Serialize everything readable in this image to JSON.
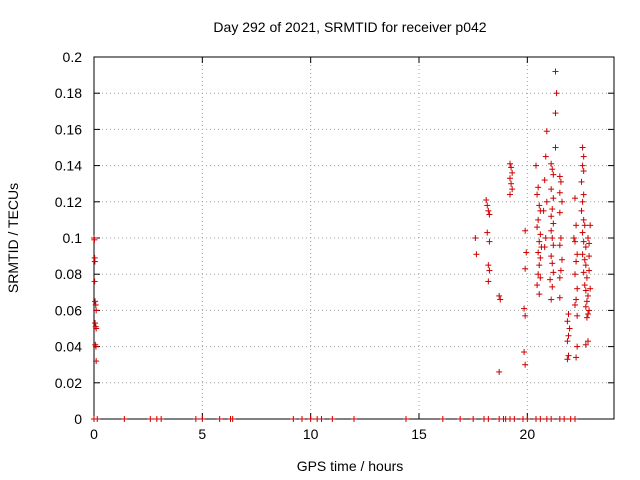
{
  "chart_data": {
    "type": "scatter",
    "title": "Day 292 of 2021, SRMTID for receiver p042",
    "xlabel": "GPS time / hours",
    "ylabel": "SRMTID / TECUs",
    "xlim": [
      0,
      24
    ],
    "ylim": [
      0,
      0.2
    ],
    "x_ticks": [
      0,
      5,
      10,
      15,
      20
    ],
    "x_tick_labels": [
      "0",
      "5",
      "10",
      "15",
      "20"
    ],
    "y_ticks": [
      0,
      0.02,
      0.04,
      0.06,
      0.08,
      0.1,
      0.12,
      0.14,
      0.16,
      0.18,
      0.2
    ],
    "y_tick_labels": [
      "0",
      "0.02",
      "0.04",
      "0.06",
      "0.08",
      "0.1",
      "0.12",
      "0.14",
      "0.16",
      "0.18",
      "0.2"
    ],
    "grid": true,
    "marker": "+",
    "color": "#cc0000",
    "series": [
      {
        "name": "SRMTID",
        "points": [
          [
            0.0,
            0.1
          ],
          [
            0.02,
            0.099
          ],
          [
            0.03,
            0.089
          ],
          [
            0.04,
            0.087
          ],
          [
            0.03,
            0.076
          ],
          [
            0.05,
            0.065
          ],
          [
            0.08,
            0.063
          ],
          [
            0.1,
            0.06
          ],
          [
            0.05,
            0.053
          ],
          [
            0.08,
            0.051
          ],
          [
            0.1,
            0.05
          ],
          [
            0.06,
            0.041
          ],
          [
            0.09,
            0.04
          ],
          [
            0.1,
            0.032
          ],
          [
            0.0,
            0.0
          ],
          [
            0.15,
            0.0
          ],
          [
            1.4,
            0.0
          ],
          [
            2.6,
            0.0
          ],
          [
            2.9,
            0.0
          ],
          [
            3.1,
            0.0
          ],
          [
            4.7,
            0.0
          ],
          [
            5.0,
            0.0
          ],
          [
            5.8,
            0.0
          ],
          [
            6.3,
            0.0
          ],
          [
            6.4,
            0.0
          ],
          [
            9.2,
            0.0
          ],
          [
            9.6,
            0.0
          ],
          [
            10.0,
            0.0
          ],
          [
            10.3,
            0.0
          ],
          [
            10.5,
            0.0
          ],
          [
            11.0,
            0.0
          ],
          [
            12.0,
            0.0
          ],
          [
            14.4,
            0.0
          ],
          [
            16.1,
            0.0
          ],
          [
            16.9,
            0.0
          ],
          [
            17.5,
            0.0
          ],
          [
            18.0,
            0.0
          ],
          [
            18.2,
            0.0
          ],
          [
            18.7,
            0.0
          ],
          [
            18.9,
            0.0
          ],
          [
            19.0,
            0.0
          ],
          [
            19.2,
            0.0
          ],
          [
            19.4,
            0.0
          ],
          [
            19.8,
            0.0
          ],
          [
            20.0,
            0.0
          ],
          [
            20.4,
            0.0
          ],
          [
            20.6,
            0.0
          ],
          [
            20.9,
            0.0
          ],
          [
            21.1,
            0.0
          ],
          [
            21.5,
            0.0
          ],
          [
            21.7,
            0.0
          ],
          [
            22.0,
            0.0
          ],
          [
            22.2,
            0.0
          ],
          [
            17.6,
            0.1
          ],
          [
            17.65,
            0.091
          ],
          [
            18.1,
            0.121
          ],
          [
            18.15,
            0.118
          ],
          [
            18.2,
            0.115
          ],
          [
            18.25,
            0.113
          ],
          [
            18.15,
            0.103
          ],
          [
            18.25,
            0.098
          ],
          [
            18.2,
            0.085
          ],
          [
            18.25,
            0.082
          ],
          [
            18.2,
            0.076
          ],
          [
            18.7,
            0.068
          ],
          [
            18.75,
            0.066
          ],
          [
            18.7,
            0.026
          ],
          [
            19.2,
            0.141
          ],
          [
            19.25,
            0.139
          ],
          [
            19.3,
            0.136
          ],
          [
            19.2,
            0.133
          ],
          [
            19.25,
            0.13
          ],
          [
            19.3,
            0.127
          ],
          [
            19.2,
            0.124
          ],
          [
            19.9,
            0.104
          ],
          [
            19.95,
            0.092
          ],
          [
            19.9,
            0.083
          ],
          [
            19.85,
            0.061
          ],
          [
            19.9,
            0.057
          ],
          [
            19.85,
            0.037
          ],
          [
            19.9,
            0.03
          ],
          [
            20.4,
            0.14
          ],
          [
            20.5,
            0.128
          ],
          [
            20.45,
            0.124
          ],
          [
            20.55,
            0.118
          ],
          [
            20.6,
            0.115
          ],
          [
            20.5,
            0.11
          ],
          [
            20.45,
            0.106
          ],
          [
            20.6,
            0.102
          ],
          [
            20.55,
            0.098
          ],
          [
            20.65,
            0.095
          ],
          [
            20.5,
            0.092
          ],
          [
            20.6,
            0.089
          ],
          [
            20.55,
            0.085
          ],
          [
            20.5,
            0.08
          ],
          [
            20.6,
            0.078
          ],
          [
            20.45,
            0.074
          ],
          [
            20.55,
            0.069
          ],
          [
            20.9,
            0.159
          ],
          [
            20.85,
            0.145
          ],
          [
            20.8,
            0.132
          ],
          [
            20.9,
            0.12
          ],
          [
            20.75,
            0.115
          ],
          [
            20.85,
            0.1
          ],
          [
            20.8,
            0.095
          ],
          [
            21.1,
            0.141
          ],
          [
            21.15,
            0.138
          ],
          [
            21.2,
            0.135
          ],
          [
            21.1,
            0.127
          ],
          [
            21.2,
            0.122
          ],
          [
            21.15,
            0.116
          ],
          [
            21.1,
            0.112
          ],
          [
            21.2,
            0.108
          ],
          [
            21.1,
            0.104
          ],
          [
            21.15,
            0.1
          ],
          [
            21.2,
            0.096
          ],
          [
            21.1,
            0.09
          ],
          [
            21.15,
            0.086
          ],
          [
            21.2,
            0.081
          ],
          [
            21.05,
            0.077
          ],
          [
            21.15,
            0.073
          ],
          [
            21.1,
            0.066
          ],
          [
            21.3,
            0.192
          ],
          [
            21.35,
            0.18
          ],
          [
            21.3,
            0.169
          ],
          [
            21.3,
            0.15
          ],
          [
            21.5,
            0.134
          ],
          [
            21.55,
            0.131
          ],
          [
            21.5,
            0.125
          ],
          [
            21.6,
            0.12
          ],
          [
            21.5,
            0.114
          ],
          [
            21.55,
            0.1
          ],
          [
            21.5,
            0.096
          ],
          [
            21.6,
            0.088
          ],
          [
            21.55,
            0.082
          ],
          [
            21.5,
            0.078
          ],
          [
            21.5,
            0.067
          ],
          [
            21.9,
            0.058
          ],
          [
            21.85,
            0.054
          ],
          [
            21.95,
            0.05
          ],
          [
            21.9,
            0.046
          ],
          [
            21.85,
            0.043
          ],
          [
            21.9,
            0.035
          ],
          [
            21.85,
            0.033
          ],
          [
            22.2,
            0.122
          ],
          [
            22.25,
            0.107
          ],
          [
            22.15,
            0.1
          ],
          [
            22.2,
            0.098
          ],
          [
            22.3,
            0.091
          ],
          [
            22.25,
            0.087
          ],
          [
            22.2,
            0.08
          ],
          [
            22.3,
            0.072
          ],
          [
            22.25,
            0.066
          ],
          [
            22.2,
            0.063
          ],
          [
            22.3,
            0.057
          ],
          [
            22.25,
            0.034
          ],
          [
            22.3,
            0.04
          ],
          [
            22.55,
            0.15
          ],
          [
            22.6,
            0.145
          ],
          [
            22.55,
            0.14
          ],
          [
            22.6,
            0.137
          ],
          [
            22.5,
            0.131
          ],
          [
            22.6,
            0.124
          ],
          [
            22.55,
            0.12
          ],
          [
            22.5,
            0.115
          ],
          [
            22.6,
            0.11
          ],
          [
            22.65,
            0.107
          ],
          [
            22.55,
            0.103
          ],
          [
            22.6,
            0.098
          ],
          [
            22.7,
            0.095
          ],
          [
            22.55,
            0.091
          ],
          [
            22.65,
            0.088
          ],
          [
            22.7,
            0.085
          ],
          [
            22.6,
            0.081
          ],
          [
            22.75,
            0.078
          ],
          [
            22.65,
            0.074
          ],
          [
            22.7,
            0.071
          ],
          [
            22.8,
            0.068
          ],
          [
            22.75,
            0.065
          ],
          [
            22.7,
            0.062
          ],
          [
            22.8,
            0.058
          ],
          [
            22.75,
            0.056
          ],
          [
            22.8,
            0.043
          ],
          [
            22.7,
            0.041
          ],
          [
            22.85,
            0.09
          ],
          [
            22.85,
            0.082
          ],
          [
            22.8,
            0.1
          ],
          [
            22.9,
            0.107
          ],
          [
            22.85,
            0.097
          ],
          [
            22.9,
            0.072
          ],
          [
            22.85,
            0.06
          ]
        ]
      }
    ]
  }
}
